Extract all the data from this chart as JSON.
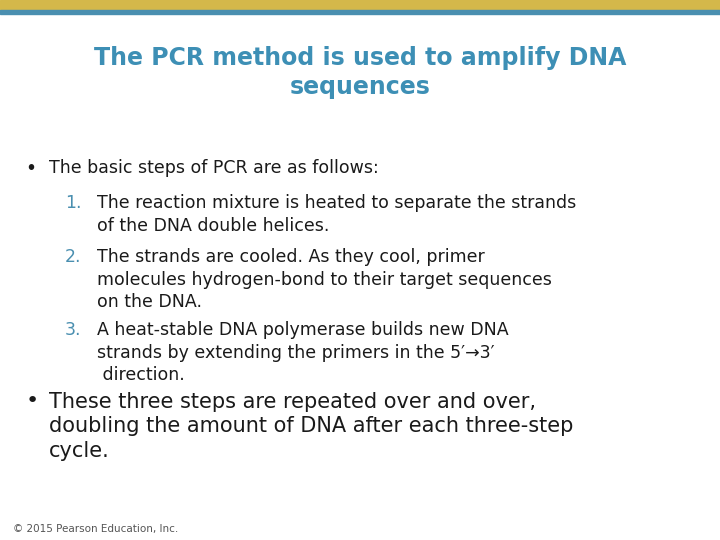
{
  "title_line1": "The PCR method is used to amplify DNA",
  "title_line2": "sequences",
  "title_color": "#3d8fb5",
  "background_color": "#ffffff",
  "top_bar_gold_color": "#d4b84a",
  "top_bar_blue_color": "#4a8fb0",
  "body_text_color": "#1a1a1a",
  "number_color": "#4a8fb0",
  "bullet_color": "#1a1a1a",
  "bullet1": "The basic steps of PCR are as follows:",
  "items": [
    "The reaction mixture is heated to separate the strands\nof the DNA double helices.",
    "The strands are cooled. As they cool, primer\nmolecules hydrogen-bond to their target sequences\non the DNA.",
    "A heat-stable DNA polymerase builds new DNA\nstrands by extending the primers in the 5′→3′\n direction."
  ],
  "bullet2_line1": "These three steps are repeated over and over,",
  "bullet2_line2": "doubling the amount of DNA after each three-step",
  "bullet2_line3": "cycle.",
  "footer": "© 2015 Pearson Education, Inc.",
  "title_fontsize": 17,
  "body_fontsize": 12.5,
  "bullet2_fontsize": 15,
  "number_fontsize": 12.5,
  "footer_fontsize": 7.5
}
